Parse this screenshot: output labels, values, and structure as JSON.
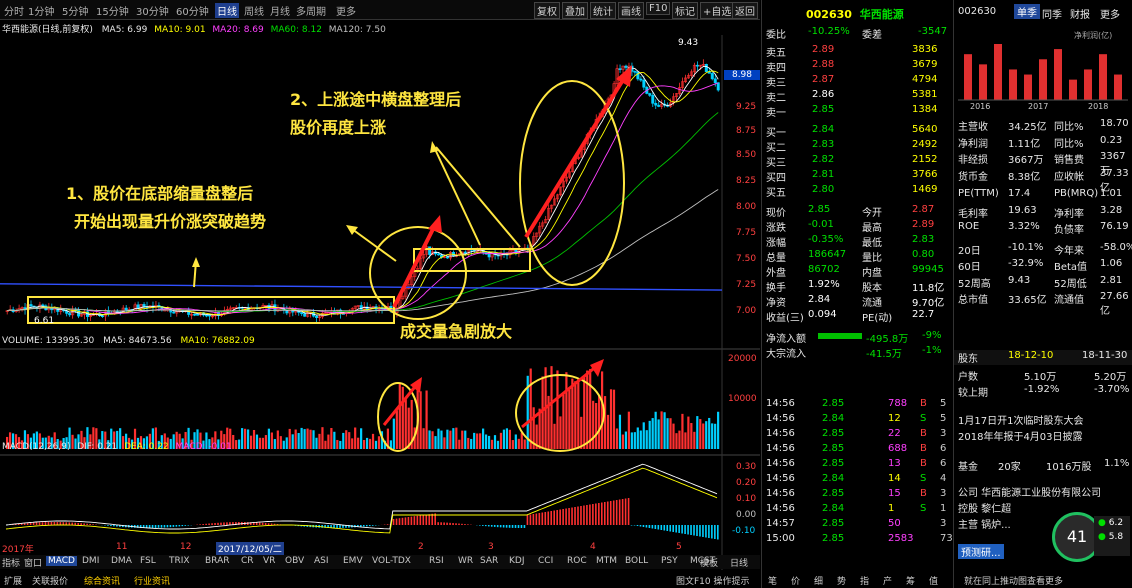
{
  "toolbar": {
    "periods": [
      "分时",
      "1分钟",
      "5分钟",
      "15分钟",
      "30分钟",
      "60分钟",
      "日线",
      "周线",
      "月线",
      "多周期",
      "更多"
    ],
    "active_period": "日线",
    "tools": [
      "复权",
      "叠加",
      "统计",
      "画线",
      "F10",
      "标记",
      "+自选",
      "返回"
    ]
  },
  "chart": {
    "title": "华西能源(日线,前复权)",
    "ma_labels": [
      "MA5: 6.99",
      "MA10: 9.01",
      "MA20: 8.69",
      "MA60: 8.12",
      "MA120: 7.50"
    ],
    "price_high": "9.43",
    "price_low": "6.61",
    "current_price_tag": "8.98",
    "y_ticks": [
      "9.25",
      "8.75",
      "8.50",
      "8.25",
      "8.00",
      "7.75",
      "7.50",
      "7.25",
      "7.00"
    ],
    "volume_header": [
      "VOLUME: 133995.30",
      "MA5: 84673.56",
      "MA10: 76882.09"
    ],
    "volume_ticks": [
      "20000",
      "10000"
    ],
    "macd_header": [
      "MACD(12,26,9)",
      "DIF: 0.21",
      "DEA: 0.22",
      "MACD: -0.01"
    ],
    "macd_ticks": [
      "0.30",
      "0.20",
      "0.10",
      "0.00",
      "-0.10"
    ],
    "date_labels": [
      "2017年",
      "11",
      "12",
      "2017/12/05/二",
      "2",
      "3",
      "4",
      "5"
    ]
  },
  "annotations": {
    "a1_line1": "1、股价在底部缩量盘整后",
    "a1_line2": "开始出现量升价涨突破趋势",
    "a2_line1": "2、上涨途中横盘整理后",
    "a2_line2": "股价再度上涨",
    "a3": "成交量急剧放大"
  },
  "bottom_tabs": [
    "指标",
    "窗口",
    "MACD",
    "DMI",
    "DMA",
    "FSL",
    "TRIX",
    "BRAR",
    "CR",
    "VR",
    "OBV",
    "ASI",
    "EMV",
    "VOL-TDX",
    "RSI",
    "WR",
    "SAR",
    "KDJ",
    "CCI",
    "ROC",
    "MTM",
    "BOLL",
    "PSY",
    "MCST"
  ],
  "bottom_tabs_active": "MACD",
  "bottom_tabs_right": [
    "模板",
    "日线"
  ],
  "bottom_bar": [
    "扩展",
    "关联报价",
    "综合资讯",
    "行业资讯"
  ],
  "bottom_bar_right": "图文F10  操作提示",
  "orderbook": {
    "code": "002630",
    "name": "华西能源",
    "weibi_label": "委比",
    "weibi": "-10.25%",
    "weicha_label": "委差",
    "weicha": "-3547",
    "asks": [
      {
        "label": "卖五",
        "price": "2.89",
        "vol": "3836"
      },
      {
        "label": "卖四",
        "price": "2.88",
        "vol": "3679"
      },
      {
        "label": "卖三",
        "price": "2.87",
        "vol": "4794"
      },
      {
        "label": "卖二",
        "price": "2.86",
        "vol": "5381"
      },
      {
        "label": "卖一",
        "price": "2.85",
        "vol": "1384"
      }
    ],
    "bids": [
      {
        "label": "买一",
        "price": "2.84",
        "vol": "5640"
      },
      {
        "label": "买二",
        "price": "2.83",
        "vol": "2492"
      },
      {
        "label": "买三",
        "price": "2.82",
        "vol": "2152"
      },
      {
        "label": "买四",
        "price": "2.81",
        "vol": "3766"
      },
      {
        "label": "买五",
        "price": "2.80",
        "vol": "1469"
      }
    ],
    "stats": [
      {
        "l1": "现价",
        "v1": "2.85",
        "l2": "今开",
        "v2": "2.87"
      },
      {
        "l1": "涨跌",
        "v1": "-0.01",
        "l2": "最高",
        "v2": "2.89"
      },
      {
        "l1": "涨幅",
        "v1": "-0.35%",
        "l2": "最低",
        "v2": "2.83"
      },
      {
        "l1": "总量",
        "v1": "186647",
        "l2": "量比",
        "v2": "0.80"
      },
      {
        "l1": "外盘",
        "v1": "86702",
        "l2": "内盘",
        "v2": "99945"
      },
      {
        "l1": "换手",
        "v1": "1.92%",
        "l2": "股本",
        "v2": "11.8亿"
      },
      {
        "l1": "净资",
        "v1": "2.84",
        "l2": "流通",
        "v2": "9.70亿"
      },
      {
        "l1": "收益(三)",
        "v1": "0.094",
        "l2": "PE(动)",
        "v2": "22.7"
      }
    ],
    "flow": [
      {
        "l": "净流入额",
        "v1": "-495.8万",
        "v2": "-9%"
      },
      {
        "l": "大宗流入",
        "v1": "-41.5万",
        "v2": "-1%"
      }
    ],
    "ticks": [
      {
        "t": "14:56",
        "p": "2.85",
        "v": "788",
        "d": "B",
        "n": "5"
      },
      {
        "t": "14:56",
        "p": "2.84",
        "v": "12",
        "d": "S",
        "n": "5"
      },
      {
        "t": "14:56",
        "p": "2.85",
        "v": "22",
        "d": "B",
        "n": "3"
      },
      {
        "t": "14:56",
        "p": "2.85",
        "v": "688",
        "d": "B",
        "n": "6"
      },
      {
        "t": "14:56",
        "p": "2.85",
        "v": "13",
        "d": "B",
        "n": "6"
      },
      {
        "t": "14:56",
        "p": "2.84",
        "v": "14",
        "d": "S",
        "n": "4"
      },
      {
        "t": "14:56",
        "p": "2.85",
        "v": "15",
        "d": "B",
        "n": "3"
      },
      {
        "t": "14:56",
        "p": "2.84",
        "v": "1",
        "d": "S",
        "n": "1"
      },
      {
        "t": "14:57",
        "p": "2.85",
        "v": "50",
        "d": "",
        "n": "3"
      },
      {
        "t": "15:00",
        "p": "2.85",
        "v": "2583",
        "d": "",
        "n": "73"
      }
    ],
    "footer_tabs": [
      "笔",
      "价",
      "细",
      "势",
      "指",
      "产",
      "筹",
      "值"
    ]
  },
  "f10": {
    "code": "002630",
    "tabs": [
      "单季",
      "同季",
      "财报",
      "更多"
    ],
    "bar_unit": "净利润(亿)",
    "bar_years": [
      "2016",
      "2017",
      "2018"
    ],
    "bar_values": [
      0.9,
      0.7,
      1.1,
      0.6,
      0.5,
      0.8,
      1.0,
      0.4,
      0.6,
      0.9,
      0.5
    ],
    "rows": [
      {
        "l1": "主营收",
        "v1": "34.25亿",
        "l2": "同比%",
        "v2": "18.70"
      },
      {
        "l1": "净利润",
        "v1": "1.11亿",
        "l2": "同比%",
        "v2": "0.23"
      },
      {
        "l1": "非经损",
        "v1": "3667万",
        "l2": "销售费",
        "v2": "3367万"
      },
      {
        "l1": "货币金",
        "v1": "8.38亿",
        "l2": "应收帐",
        "v2": "37.33亿"
      },
      {
        "l1": "PE(TTM)",
        "v1": "17.4",
        "l2": "PB(MRQ)",
        "v2": "1.01"
      },
      {
        "l1": "毛利率",
        "v1": "19.63",
        "l2": "净利率",
        "v2": "3.28"
      },
      {
        "l1": "ROE",
        "v1": "3.32%",
        "l2": "负债率",
        "v2": "76.19"
      },
      {
        "l1": "20日",
        "v1": "-10.1%",
        "l2": "今年来",
        "v2": "-58.0%"
      },
      {
        "l1": "60日",
        "v1": "-32.9%",
        "l2": "Beta值",
        "v2": "1.06"
      },
      {
        "l1": "52周高",
        "v1": "9.43",
        "l2": "52周低",
        "v2": "2.81"
      },
      {
        "l1": "总市值",
        "v1": "33.65亿",
        "l2": "流通值",
        "v2": "27.66亿"
      }
    ],
    "holders_hdr": {
      "l": "股东",
      "d1": "18-12-10",
      "d2": "18-11-30"
    },
    "holders": [
      {
        "l": "户数",
        "v1": "5.10万",
        "v2": "5.20万"
      },
      {
        "l": "较上期",
        "v1": "-1.92%",
        "v2": "-3.70%"
      }
    ],
    "notice1": "1月17日开1次临时股东大会",
    "notice2": "2018年年报于4月03日披露",
    "fund": {
      "l": "基金",
      "v1": "20家",
      "v2": "1016万股",
      "v3": "1.1%"
    },
    "company": "公司  华西能源工业股份有限公司",
    "holder_label": "控股  黎仁超",
    "main_biz": "主营  锅炉...",
    "badge": "41",
    "badge_s1": "6.2",
    "badge_s2": "5.8",
    "forecast_btn": "预测研...",
    "footer": "就在同上推动图查看更多"
  },
  "colors": {
    "up": "#ff3030",
    "down": "#00d0ff",
    "ma5": "#ffffff",
    "ma10": "#ffff00",
    "ma20": "#ff40ff",
    "ma60": "#00c000",
    "ma120": "#c0c0c0",
    "ma250": "#3050ff",
    "anno": "#ffe640"
  }
}
